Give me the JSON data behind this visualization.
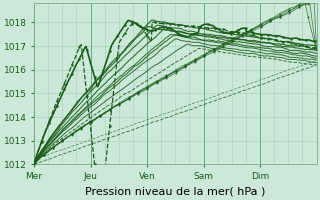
{
  "background_color": "#cce8d8",
  "plot_bg_color": "#cce8d8",
  "grid_color": "#a8ccb8",
  "line_color": "#1a5c1a",
  "ylim": [
    1012,
    1018.8
  ],
  "yticks": [
    1012,
    1013,
    1014,
    1015,
    1016,
    1017,
    1018
  ],
  "xlabel": "Pression niveau de la mer( hPa )",
  "xlabel_fontsize": 8,
  "tick_fontsize": 6.5,
  "day_labels": [
    "Mer",
    "Jeu",
    "Ven",
    "Sam",
    "Dim"
  ],
  "day_positions": [
    0,
    24,
    48,
    72,
    96
  ],
  "total_hours": 120
}
